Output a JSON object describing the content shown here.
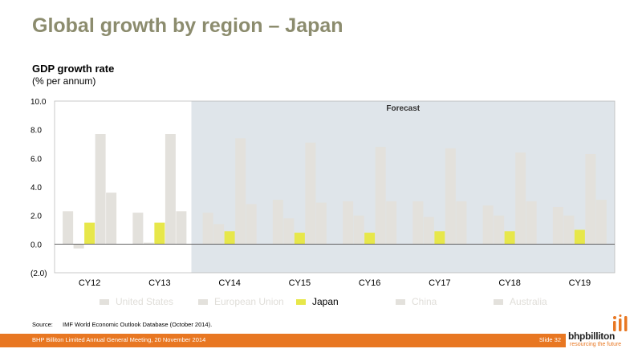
{
  "title": "Global growth by region – Japan",
  "colors": {
    "accent": "#e87722",
    "forecast_bg": "#dfe5ea",
    "other_series": "#e3e1dc",
    "japan": "#e7e74a",
    "title": "#8c8c6e"
  },
  "chart_data": {
    "type": "bar",
    "ylabel_line1": "GDP growth rate",
    "ylabel_line2": "(% per annum)",
    "categories": [
      "CY12",
      "CY13",
      "CY14",
      "CY15",
      "CY16",
      "CY17",
      "CY18",
      "CY19"
    ],
    "ylim": [
      -2,
      10
    ],
    "yticks": [
      "(2.0)",
      "0.0",
      "2.0",
      "4.0",
      "6.0",
      "8.0",
      "10.0"
    ],
    "forecast_label": "Forecast",
    "forecast_start_category": "CY14",
    "series": [
      {
        "name": "United States",
        "color": "#e3e1dc",
        "values": [
          2.3,
          2.2,
          2.2,
          3.1,
          3.0,
          3.0,
          2.7,
          2.6
        ]
      },
      {
        "name": "European Union",
        "color": "#e3e1dc",
        "values": [
          -0.3,
          0.1,
          1.4,
          1.8,
          2.0,
          1.9,
          2.0,
          2.0
        ]
      },
      {
        "name": "Japan",
        "color": "#e7e74a",
        "values": [
          1.5,
          1.5,
          0.9,
          0.8,
          0.8,
          0.9,
          0.9,
          1.0
        ]
      },
      {
        "name": "China",
        "color": "#e3e1dc",
        "values": [
          7.7,
          7.7,
          7.4,
          7.1,
          6.8,
          6.7,
          6.4,
          6.3
        ]
      },
      {
        "name": "Australia",
        "color": "#e3e1dc",
        "values": [
          3.6,
          2.3,
          2.8,
          2.9,
          3.0,
          3.0,
          3.0,
          3.1
        ]
      }
    ],
    "legend_position": "bottom"
  },
  "source_label": "Source:",
  "source_text": "IMF World Economic Outlook Database (October 2014).",
  "footer": {
    "text": "BHP Billiton Limited Annual General Meeting, 20 November 2014",
    "slide": "Slide 32"
  },
  "logo": {
    "word": "bhpbilliton",
    "tagline": "resourcing the future"
  }
}
